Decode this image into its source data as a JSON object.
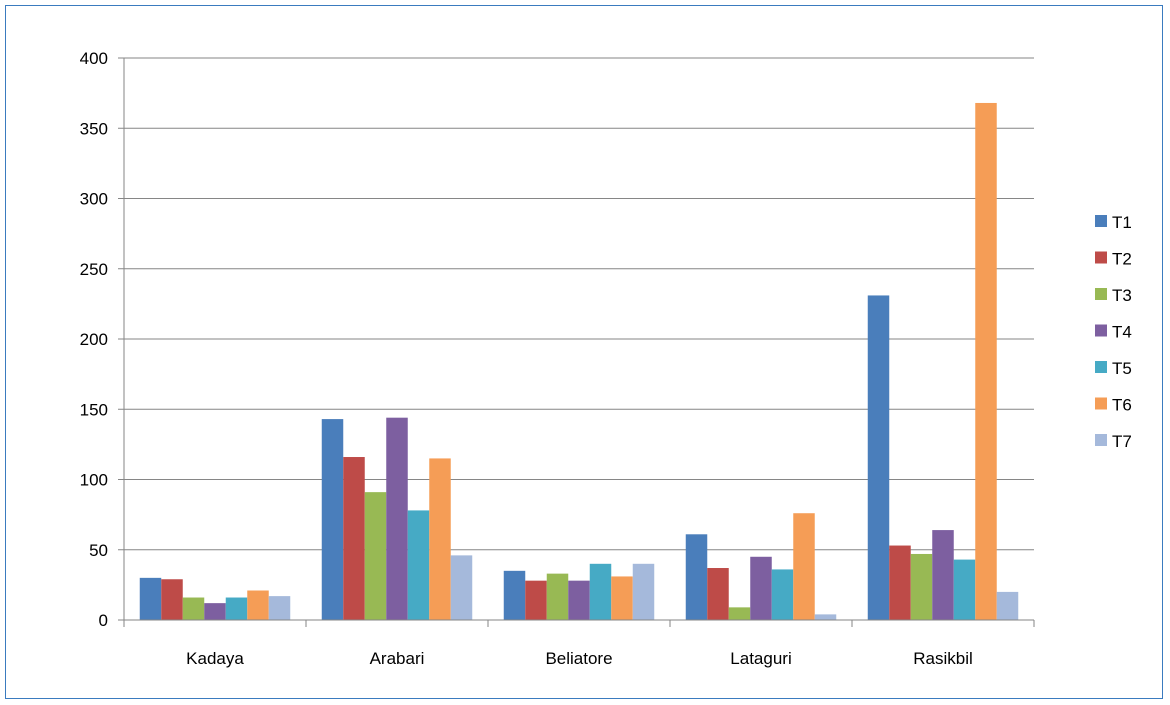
{
  "chart_data": {
    "type": "bar",
    "title": "",
    "xlabel": "",
    "ylabel": "",
    "ylim": [
      0,
      400
    ],
    "yticks": [
      0,
      50,
      100,
      150,
      200,
      250,
      300,
      350,
      400
    ],
    "grid": true,
    "legend_position": "right",
    "categories": [
      "Kadaya",
      "Arabari",
      "Beliatore",
      "Lataguri",
      "Rasikbil"
    ],
    "series": [
      {
        "name": "T1",
        "color": "#4A7EBB",
        "values": [
          30,
          143,
          35,
          61,
          231
        ]
      },
      {
        "name": "T2",
        "color": "#BE4B48",
        "values": [
          29,
          116,
          28,
          37,
          53
        ]
      },
      {
        "name": "T3",
        "color": "#98B954",
        "values": [
          16,
          91,
          33,
          9,
          47
        ]
      },
      {
        "name": "T4",
        "color": "#7D5FA0",
        "values": [
          12,
          144,
          28,
          45,
          64
        ]
      },
      {
        "name": "T5",
        "color": "#46AAC5",
        "values": [
          16,
          78,
          40,
          36,
          43
        ]
      },
      {
        "name": "T6",
        "color": "#F59D56",
        "values": [
          21,
          115,
          31,
          76,
          368
        ]
      },
      {
        "name": "T7",
        "color": "#A5B9DB",
        "values": [
          17,
          46,
          40,
          4,
          20
        ]
      }
    ]
  }
}
